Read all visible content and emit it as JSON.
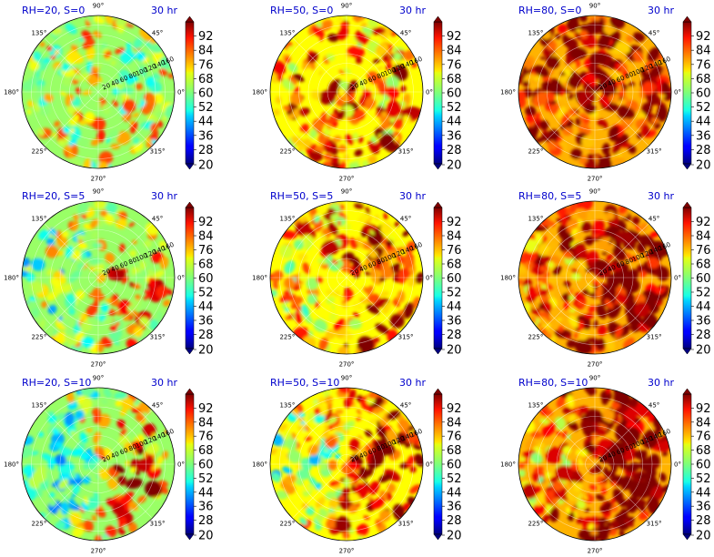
{
  "chart_data": {
    "type": "heatmap",
    "projection": "polar",
    "grid": true,
    "colormap": "jet",
    "colorbar": {
      "ticks": [
        "92",
        "84",
        "76",
        "68",
        "60",
        "52",
        "44",
        "36",
        "28",
        "20"
      ],
      "range": [
        20,
        100
      ],
      "extend": "both"
    },
    "angle_ticks": [
      "0°",
      "45°",
      "90°",
      "135°",
      "180°",
      "225°",
      "270°",
      "315°"
    ],
    "radial_ticks": [
      "20",
      "40",
      "60",
      "80",
      "100",
      "120",
      "140",
      "160"
    ],
    "radial_range": [
      0,
      160
    ],
    "time_label": "30 hr",
    "panels": [
      {
        "title": "RH=20, S=0",
        "time": "30 hr",
        "rh": 20,
        "s": 0
      },
      {
        "title": "RH=50, S=0",
        "time": "30 hr",
        "rh": 50,
        "s": 0
      },
      {
        "title": "RH=80, S=0",
        "time": "30 hr",
        "rh": 80,
        "s": 0
      },
      {
        "title": "RH=20, S=5",
        "time": "30 hr",
        "rh": 20,
        "s": 5
      },
      {
        "title": "RH=50, S=5",
        "time": "30 hr",
        "rh": 50,
        "s": 5
      },
      {
        "title": "RH=80, S=5",
        "time": "30 hr",
        "rh": 80,
        "s": 5
      },
      {
        "title": "RH=20, S=10",
        "time": "30 hr",
        "rh": 20,
        "s": 10
      },
      {
        "title": "RH=50, S=10",
        "time": "30 hr",
        "rh": 50,
        "s": 10
      },
      {
        "title": "RH=80, S=10",
        "time": "30 hr",
        "rh": 80,
        "s": 10
      }
    ]
  }
}
